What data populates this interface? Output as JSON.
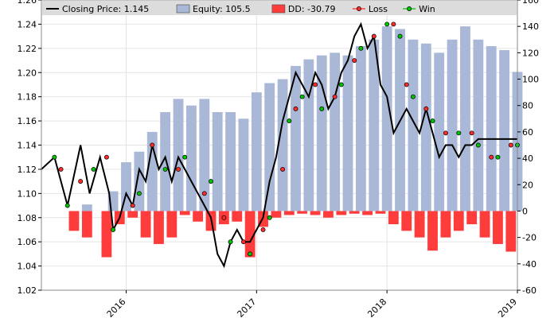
{
  "chart_data": {
    "type": "line",
    "legend": {
      "placement": "top",
      "items": [
        {
          "label": "Closing Price: 1.145",
          "kind": "line",
          "color": "#000000"
        },
        {
          "label": "Equity: 105.5",
          "kind": "bar",
          "color": "#a9b8d6"
        },
        {
          "label": "DD: -30.79",
          "kind": "bar",
          "color": "#ff3c3c"
        },
        {
          "label": "Loss",
          "kind": "marker",
          "color": "#ff2a2a"
        },
        {
          "label": "Win",
          "kind": "marker",
          "color": "#00c400"
        }
      ]
    },
    "left_axis": {
      "min": 1.02,
      "max": 1.26,
      "ticks": [
        "1.02",
        "1.04",
        "1.06",
        "1.08",
        "1.10",
        "1.12",
        "1.14",
        "1.16",
        "1.18",
        "1.20",
        "1.22",
        "1.24",
        "1.26"
      ]
    },
    "right_axis": {
      "min": -60,
      "max": 160,
      "ticks": [
        "-60",
        "-40",
        "-20",
        "0",
        "20",
        "40",
        "60",
        "80",
        "100",
        "120",
        "140",
        "160"
      ]
    },
    "x_axis": {
      "min": 2015.35,
      "max": 2019.0,
      "ticks": [
        {
          "label": "2016",
          "value": 2016.0
        },
        {
          "label": "2017",
          "value": 2017.0
        },
        {
          "label": "2018",
          "value": 2018.0
        },
        {
          "label": "2019",
          "value": 2019.0
        }
      ]
    },
    "grid": true,
    "colors": {
      "price": "#000000",
      "equity": "#a9b8d6",
      "drawdown": "#ff3c3c",
      "win": "#00c400",
      "loss": "#ff2a2a",
      "legend_bg": "#dcdcdc",
      "grid": "#e4e4e4"
    },
    "price_series": {
      "x": [
        2015.35,
        2015.45,
        2015.55,
        2015.65,
        2015.72,
        2015.8,
        2015.87,
        2015.9,
        2015.95,
        2016.0,
        2016.05,
        2016.1,
        2016.15,
        2016.2,
        2016.25,
        2016.3,
        2016.35,
        2016.4,
        2016.45,
        2016.5,
        2016.55,
        2016.6,
        2016.65,
        2016.7,
        2016.75,
        2016.8,
        2016.85,
        2016.9,
        2016.95,
        2017.0,
        2017.05,
        2017.1,
        2017.15,
        2017.2,
        2017.25,
        2017.3,
        2017.35,
        2017.4,
        2017.45,
        2017.5,
        2017.55,
        2017.6,
        2017.65,
        2017.7,
        2017.75,
        2017.8,
        2017.85,
        2017.9,
        2017.95,
        2018.0,
        2018.05,
        2018.1,
        2018.15,
        2018.2,
        2018.25,
        2018.3,
        2018.35,
        2018.4,
        2018.45,
        2018.5,
        2018.55,
        2018.6,
        2018.65,
        2018.7,
        2018.75,
        2018.8,
        2018.85,
        2018.9,
        2018.95,
        2019.0
      ],
      "y": [
        1.12,
        1.13,
        1.09,
        1.14,
        1.1,
        1.13,
        1.1,
        1.07,
        1.08,
        1.1,
        1.09,
        1.12,
        1.11,
        1.14,
        1.12,
        1.13,
        1.11,
        1.13,
        1.12,
        1.11,
        1.1,
        1.09,
        1.08,
        1.05,
        1.04,
        1.06,
        1.07,
        1.06,
        1.06,
        1.07,
        1.08,
        1.11,
        1.13,
        1.16,
        1.18,
        1.2,
        1.19,
        1.18,
        1.2,
        1.19,
        1.17,
        1.18,
        1.2,
        1.21,
        1.23,
        1.24,
        1.22,
        1.23,
        1.19,
        1.18,
        1.15,
        1.16,
        1.17,
        1.16,
        1.15,
        1.17,
        1.15,
        1.13,
        1.14,
        1.14,
        1.13,
        1.14,
        1.14,
        1.145,
        1.145,
        1.145,
        1.145,
        1.145,
        1.145,
        1.145
      ]
    },
    "equity_bars": {
      "x": [
        2015.45,
        2015.7,
        2015.8,
        2015.9,
        2016.0,
        2016.1,
        2016.2,
        2016.3,
        2016.4,
        2016.5,
        2016.6,
        2016.7,
        2016.8,
        2016.9,
        2017.0,
        2017.1,
        2017.2,
        2017.3,
        2017.4,
        2017.5,
        2017.6,
        2017.7,
        2017.8,
        2017.9,
        2018.0,
        2018.1,
        2018.2,
        2018.3,
        2018.4,
        2018.5,
        2018.6,
        2018.7,
        2018.8,
        2018.9,
        2019.0
      ],
      "y": [
        0,
        5,
        0,
        15,
        37,
        45,
        60,
        75,
        85,
        80,
        85,
        75,
        75,
        70,
        90,
        97,
        100,
        110,
        115,
        118,
        120,
        118,
        125,
        130,
        140,
        138,
        130,
        127,
        120,
        130,
        140,
        130,
        125,
        122,
        105.5
      ]
    },
    "drawdown_bars": {
      "x": [
        2015.6,
        2015.7,
        2015.85,
        2015.95,
        2016.05,
        2016.15,
        2016.25,
        2016.35,
        2016.45,
        2016.55,
        2016.65,
        2016.75,
        2016.85,
        2016.95,
        2017.05,
        2017.15,
        2017.25,
        2017.35,
        2017.45,
        2017.55,
        2017.65,
        2017.75,
        2017.85,
        2017.95,
        2018.05,
        2018.15,
        2018.25,
        2018.35,
        2018.45,
        2018.55,
        2018.65,
        2018.75,
        2018.85,
        2018.95
      ],
      "y": [
        -15,
        -20,
        -35,
        -10,
        -5,
        -20,
        -25,
        -20,
        -3,
        -8,
        -15,
        -10,
        -8,
        -35,
        -12,
        -5,
        -3,
        -2,
        -3,
        -5,
        -3,
        -2,
        -3,
        -2,
        -10,
        -15,
        -20,
        -30,
        -20,
        -15,
        -10,
        -20,
        -25,
        -30.79
      ]
    },
    "trades": {
      "win": {
        "x": [
          2015.45,
          2015.55,
          2015.75,
          2015.9,
          2016.1,
          2016.3,
          2016.45,
          2016.65,
          2016.8,
          2016.95,
          2017.1,
          2017.25,
          2017.35,
          2017.5,
          2017.65,
          2017.8,
          2018.0,
          2018.1,
          2018.2,
          2018.35,
          2018.55,
          2018.7,
          2018.85,
          2019.0
        ],
        "y": [
          1.13,
          1.09,
          1.12,
          1.07,
          1.1,
          1.12,
          1.13,
          1.11,
          1.06,
          1.05,
          1.08,
          1.16,
          1.18,
          1.17,
          1.19,
          1.22,
          1.24,
          1.23,
          1.18,
          1.16,
          1.15,
          1.14,
          1.13,
          1.14
        ]
      },
      "loss": {
        "x": [
          2015.5,
          2015.65,
          2015.85,
          2016.05,
          2016.2,
          2016.4,
          2016.6,
          2016.75,
          2016.9,
          2017.05,
          2017.2,
          2017.3,
          2017.45,
          2017.6,
          2017.75,
          2017.9,
          2018.05,
          2018.15,
          2018.3,
          2018.45,
          2018.65,
          2018.8,
          2018.95
        ],
        "y": [
          1.12,
          1.11,
          1.13,
          1.09,
          1.14,
          1.12,
          1.1,
          1.08,
          1.06,
          1.07,
          1.12,
          1.17,
          1.19,
          1.18,
          1.21,
          1.23,
          1.24,
          1.19,
          1.17,
          1.15,
          1.15,
          1.13,
          1.14
        ]
      }
    }
  }
}
